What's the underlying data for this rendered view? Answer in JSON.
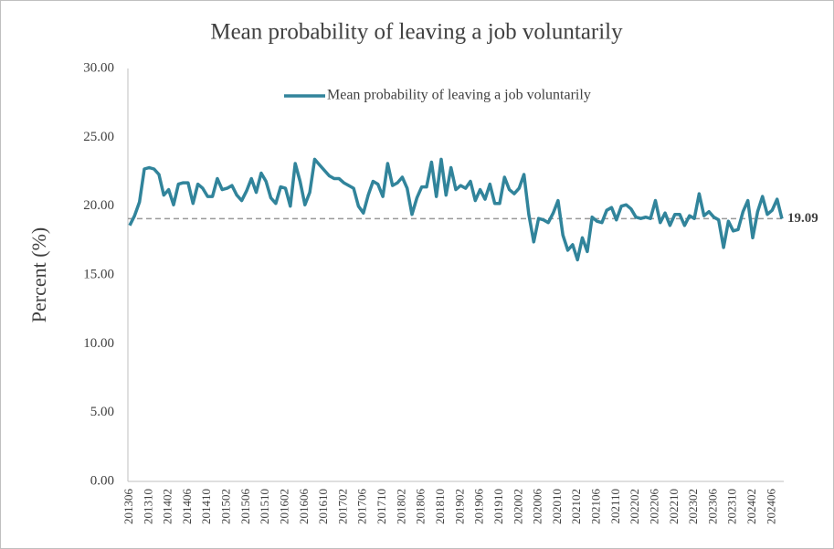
{
  "chart_data": {
    "type": "line",
    "title": "Mean probability  of leaving  a job voluntarily",
    "y_label": "Percent (%)",
    "categories": [
      "201306",
      null,
      null,
      null,
      "201310",
      null,
      null,
      null,
      "201402",
      null,
      null,
      null,
      "201406",
      null,
      null,
      null,
      "201410",
      null,
      null,
      null,
      "201502",
      null,
      null,
      null,
      "201506",
      null,
      null,
      null,
      "201510",
      null,
      null,
      null,
      "201602",
      null,
      null,
      null,
      "201606",
      null,
      null,
      null,
      "201610",
      null,
      null,
      null,
      "201702",
      null,
      null,
      null,
      "201706",
      null,
      null,
      null,
      "201710",
      null,
      null,
      null,
      "201802",
      null,
      null,
      null,
      "201806",
      null,
      null,
      null,
      "201810",
      null,
      null,
      null,
      "201902",
      null,
      null,
      null,
      "201906",
      null,
      null,
      null,
      "201910",
      null,
      null,
      null,
      "202002",
      null,
      null,
      null,
      "202006",
      null,
      null,
      null,
      "202010",
      null,
      null,
      null,
      "202102",
      null,
      null,
      null,
      "202106",
      null,
      null,
      null,
      "202110",
      null,
      null,
      null,
      "202202",
      null,
      null,
      null,
      "202206",
      null,
      null,
      null,
      "202210",
      null,
      null,
      null,
      "202302",
      null,
      null,
      null,
      "202306",
      null,
      null,
      null,
      "202310",
      null,
      null,
      null,
      "202402",
      null,
      null,
      null,
      "202406",
      null,
      null
    ],
    "series": [
      {
        "name": "Mean probability  of leaving  a job voluntarily",
        "color": "#31849b",
        "values": [
          18.6,
          19.3,
          20.3,
          22.7,
          22.8,
          22.7,
          22.3,
          20.8,
          21.2,
          20.1,
          21.6,
          21.7,
          21.7,
          20.2,
          21.6,
          21.3,
          20.7,
          20.7,
          22.0,
          21.2,
          21.3,
          21.5,
          20.8,
          20.4,
          21.1,
          22.0,
          21.0,
          22.4,
          21.8,
          20.6,
          20.2,
          21.4,
          21.3,
          20.0,
          23.1,
          21.8,
          20.1,
          21.0,
          23.4,
          23.0,
          22.6,
          22.2,
          22.0,
          22.0,
          21.7,
          21.5,
          21.3,
          20.0,
          19.5,
          20.8,
          21.8,
          21.6,
          20.7,
          23.1,
          21.5,
          21.7,
          22.1,
          21.3,
          19.4,
          20.6,
          21.4,
          21.4,
          23.2,
          20.7,
          23.4,
          20.8,
          22.8,
          21.2,
          21.5,
          21.3,
          21.8,
          20.4,
          21.2,
          20.5,
          21.6,
          20.2,
          20.2,
          22.1,
          21.2,
          20.9,
          21.3,
          22.3,
          19.4,
          17.4,
          19.1,
          19.0,
          18.8,
          19.5,
          20.4,
          17.9,
          16.8,
          17.2,
          16.1,
          17.7,
          16.7,
          19.2,
          18.9,
          18.8,
          19.7,
          19.9,
          19.0,
          20.0,
          20.1,
          19.8,
          19.2,
          19.1,
          19.2,
          19.1,
          20.4,
          18.8,
          19.5,
          18.6,
          19.4,
          19.4,
          18.6,
          19.3,
          19.1,
          20.9,
          19.3,
          19.6,
          19.2,
          19.0,
          17.0,
          18.9,
          18.2,
          18.3,
          19.6,
          20.4,
          17.7,
          19.6,
          20.7,
          19.4,
          19.7,
          20.5,
          19.09
        ]
      }
    ],
    "reference_line": 19.09,
    "reference_color": "#999999",
    "ylim": [
      0,
      30
    ],
    "yticks": [
      {
        "value": 0,
        "label": "0.00"
      },
      {
        "value": 5,
        "label": "5.00"
      },
      {
        "value": 10,
        "label": "10.00"
      },
      {
        "value": 15,
        "label": "15.00"
      },
      {
        "value": 20,
        "label": "20.00"
      },
      {
        "value": 25,
        "label": "25.00"
      },
      {
        "value": 30,
        "label": "30.00"
      }
    ],
    "grid": false,
    "legend": "top"
  }
}
